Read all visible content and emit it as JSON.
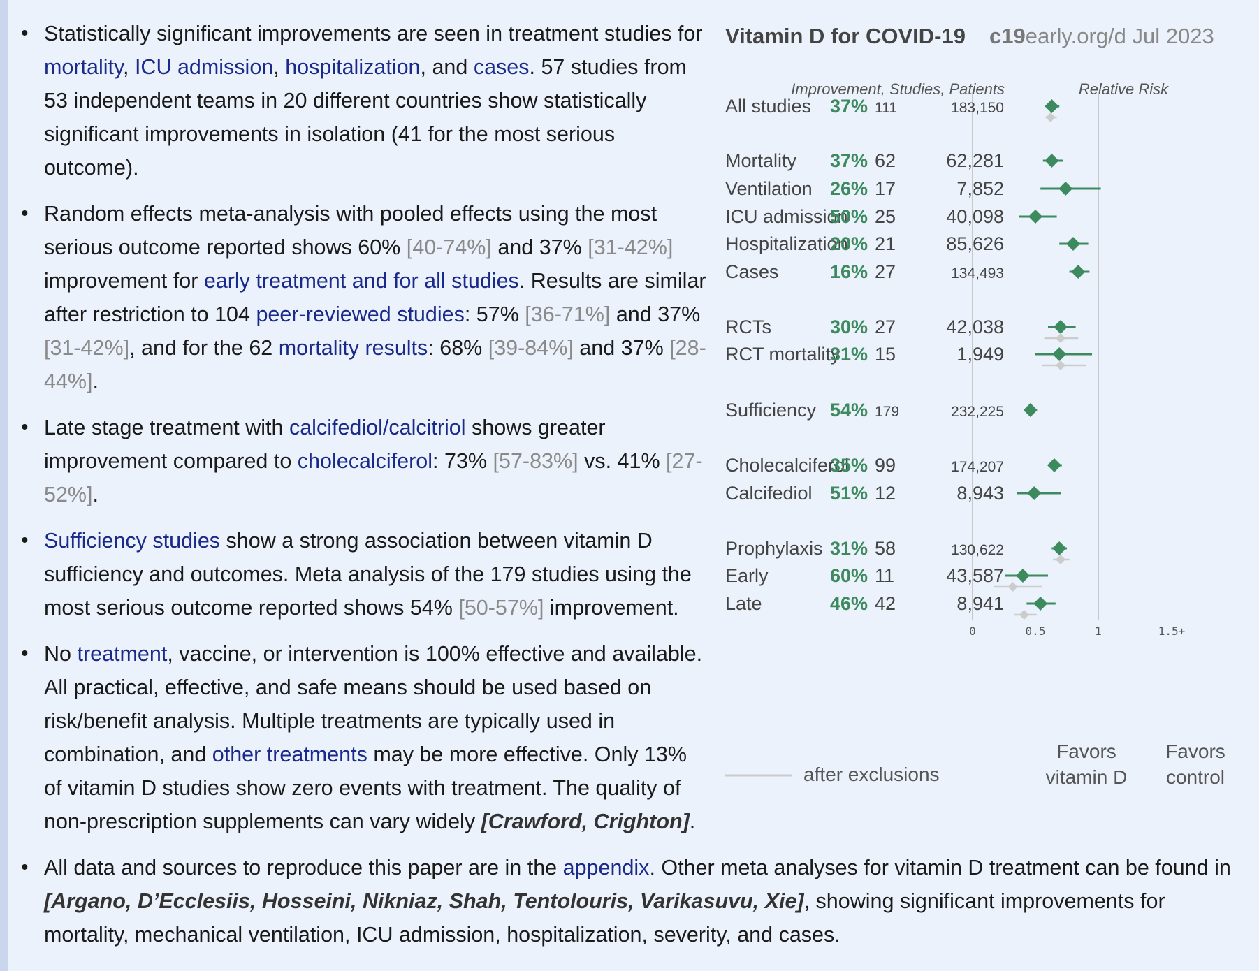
{
  "bullets": [
    {
      "segs": [
        {
          "t": "Statistically significant improvements are seen in treatment studies for "
        },
        {
          "t": "mortality",
          "c": "lnk"
        },
        {
          "t": ", "
        },
        {
          "t": "ICU admission",
          "c": "lnk"
        },
        {
          "t": ", "
        },
        {
          "t": "hospitalization",
          "c": "lnk"
        },
        {
          "t": ", and "
        },
        {
          "t": "cases",
          "c": "lnk"
        },
        {
          "t": ". 57 studies from 53 independent teams in 20 different countries show statistically significant improvements in isolation (41 for the most serious outcome)."
        }
      ]
    },
    {
      "segs": [
        {
          "t": "Random effects meta-analysis with pooled effects using the most serious outcome reported shows 60% "
        },
        {
          "t": "[40-74%]",
          "c": "ci"
        },
        {
          "t": " and 37% "
        },
        {
          "t": "[31-42%]",
          "c": "ci"
        },
        {
          "t": " improvement for "
        },
        {
          "t": "early treatment and for all studies",
          "c": "lnk"
        },
        {
          "t": ". Results are similar after restriction to 104 "
        },
        {
          "t": "peer-reviewed studies",
          "c": "lnk"
        },
        {
          "t": ": 57% "
        },
        {
          "t": "[36-71%]",
          "c": "ci"
        },
        {
          "t": " and 37% "
        },
        {
          "t": "[31-42%]",
          "c": "ci"
        },
        {
          "t": ", and for the 62 "
        },
        {
          "t": "mortality results",
          "c": "lnk"
        },
        {
          "t": ": 68% "
        },
        {
          "t": "[39-84%]",
          "c": "ci"
        },
        {
          "t": " and 37% "
        },
        {
          "t": "[28-44%]",
          "c": "ci"
        },
        {
          "t": "."
        }
      ]
    },
    {
      "segs": [
        {
          "t": "Late stage treatment with "
        },
        {
          "t": "calcifediol/calcitriol",
          "c": "lnk"
        },
        {
          "t": " shows greater improvement compared to "
        },
        {
          "t": "cholecalciferol",
          "c": "lnk"
        },
        {
          "t": ": 73% "
        },
        {
          "t": "[57-83%]",
          "c": "ci"
        },
        {
          "t": " vs. 41% "
        },
        {
          "t": "[27-52%]",
          "c": "ci"
        },
        {
          "t": "."
        }
      ]
    },
    {
      "segs": [
        {
          "t": "Sufficiency studies",
          "c": "lnk"
        },
        {
          "t": " show a strong association between vitamin D sufficiency and outcomes. Meta analysis of the 179 studies using the most serious outcome reported shows 54% "
        },
        {
          "t": "[50-57%]",
          "c": "ci"
        },
        {
          "t": " improvement."
        }
      ]
    },
    {
      "segs": [
        {
          "t": "No "
        },
        {
          "t": "treatment",
          "c": "lnk"
        },
        {
          "t": ", vaccine, or intervention is 100% effective and available. All practical, effective, and safe means should be used based on risk/benefit analysis. Multiple treatments are typically used in combination, and "
        },
        {
          "t": "other treatments",
          "c": "lnk"
        },
        {
          "t": " may be more effective. Only 13% of vitamin D studies show zero events with treatment. The quality of non-prescription supplements can vary widely "
        },
        {
          "t": "[Crawford, Crighton]",
          "c": "cite"
        },
        {
          "t": "."
        }
      ]
    },
    {
      "segs": [
        {
          "t": "All data and sources to reproduce this paper are in the "
        },
        {
          "t": "appendix",
          "c": "lnk"
        },
        {
          "t": ". Other meta analyses for vitamin D treatment can be found in "
        },
        {
          "t": "[Argano, D’Ecclesiis, Hosseini, Nikniaz, Shah, Tentolouris, Varikasuvu, Xie]",
          "c": "cite"
        },
        {
          "t": ", showing significant improvements for mortality, mechanical ventilation, ICU admission, hospitalization, severity, and cases."
        }
      ]
    }
  ],
  "forest": {
    "title": "Vitamin D for COVID-19",
    "site_bold": "c19",
    "site_rest": "early.org/d Jul 2023",
    "col_header_left": "Improvement, Studies, Patients",
    "col_header_right": "Relative Risk",
    "legend_label": "after exclusions",
    "favors_left": [
      "Favors",
      "vitamin D"
    ],
    "favors_right": [
      "Favors",
      "control"
    ],
    "colors": {
      "main": "#3d8a5f",
      "excl": "#cccccc",
      "axis": "#c8c8c8",
      "text": "#444444"
    }
  },
  "chart_data": {
    "type": "forest",
    "x_axis": {
      "ticks": [
        0,
        0.5,
        1
      ],
      "tick_labels": [
        "0",
        "0.5",
        "1",
        "1.5+"
      ],
      "range": [
        0,
        1.5
      ]
    },
    "rows": [
      {
        "label": "All studies",
        "improvement": "37%",
        "studies": "111",
        "patients": "183,150",
        "rr": 0.63,
        "ci": [
          0.58,
          0.69
        ],
        "excl": {
          "rr": 0.62,
          "ci": [
            0.58,
            0.67
          ]
        }
      },
      {
        "label": "Mortality",
        "improvement": "37%",
        "studies": "62",
        "patients": "62,281",
        "rr": 0.63,
        "ci": [
          0.56,
          0.72
        ]
      },
      {
        "label": "Ventilation",
        "improvement": "26%",
        "studies": "17",
        "patients": "7,852",
        "rr": 0.74,
        "ci": [
          0.54,
          1.02
        ]
      },
      {
        "label": "ICU admission",
        "improvement": "50%",
        "studies": "25",
        "patients": "40,098",
        "rr": 0.5,
        "ci": [
          0.37,
          0.67
        ]
      },
      {
        "label": "Hospitalization",
        "improvement": "20%",
        "studies": "21",
        "patients": "85,626",
        "rr": 0.8,
        "ci": [
          0.69,
          0.92
        ]
      },
      {
        "label": "Cases",
        "improvement": "16%",
        "studies": "27",
        "patients": "134,493",
        "rr": 0.84,
        "ci": [
          0.77,
          0.93
        ]
      },
      {
        "label": "RCTs",
        "improvement": "30%",
        "studies": "27",
        "patients": "42,038",
        "rr": 0.7,
        "ci": [
          0.6,
          0.82
        ],
        "excl": {
          "rr": 0.7,
          "ci": [
            0.57,
            0.84
          ]
        }
      },
      {
        "label": "RCT mortality",
        "improvement": "31%",
        "studies": "15",
        "patients": "1,949",
        "rr": 0.69,
        "ci": [
          0.5,
          0.95
        ],
        "excl": {
          "rr": 0.7,
          "ci": [
            0.55,
            0.9
          ]
        }
      },
      {
        "label": "Sufficiency",
        "improvement": "54%",
        "studies": "179",
        "patients": "232,225",
        "rr": 0.46,
        "ci": [
          0.43,
          0.5
        ]
      },
      {
        "label": "Cholecalciferol",
        "improvement": "35%",
        "studies": "99",
        "patients": "174,207",
        "rr": 0.65,
        "ci": [
          0.6,
          0.71
        ]
      },
      {
        "label": "Calcifediol",
        "improvement": "51%",
        "studies": "12",
        "patients": "8,943",
        "rr": 0.49,
        "ci": [
          0.35,
          0.7
        ]
      },
      {
        "label": "Prophylaxis",
        "improvement": "31%",
        "studies": "58",
        "patients": "130,622",
        "rr": 0.69,
        "ci": [
          0.63,
          0.75
        ],
        "excl": {
          "rr": 0.7,
          "ci": [
            0.64,
            0.77
          ]
        }
      },
      {
        "label": "Early",
        "improvement": "60%",
        "studies": "11",
        "patients": "43,587",
        "rr": 0.4,
        "ci": [
          0.26,
          0.6
        ],
        "excl": {
          "rr": 0.32,
          "ci": [
            0.17,
            0.55
          ]
        }
      },
      {
        "label": "Late",
        "improvement": "46%",
        "studies": "42",
        "patients": "8,941",
        "rr": 0.54,
        "ci": [
          0.43,
          0.66
        ],
        "excl": {
          "rr": 0.41,
          "ci": [
            0.33,
            0.51
          ]
        }
      }
    ]
  }
}
